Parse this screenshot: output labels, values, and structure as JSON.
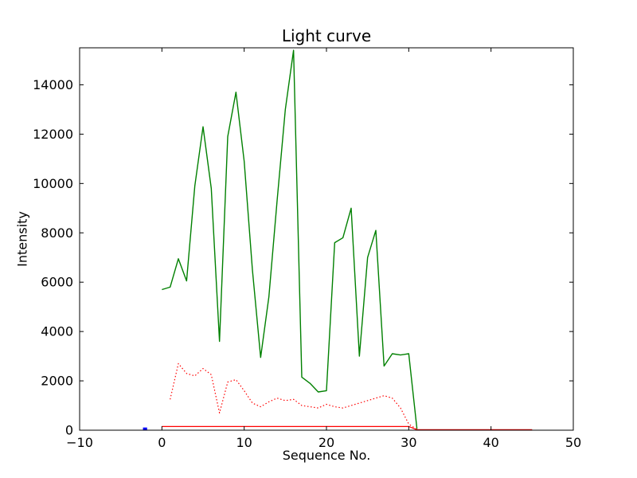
{
  "chart_data": {
    "type": "line",
    "title": "Light curve",
    "xlabel": "Sequence No.",
    "ylabel": "Intensity",
    "xlim": [
      -10,
      50
    ],
    "ylim": [
      0,
      15500
    ],
    "grid": false,
    "legend_position": "none",
    "frame_color": "#000000",
    "background_color": "#ffffff",
    "xticks": [
      {
        "value": -10,
        "label": "−10"
      },
      {
        "value": 0,
        "label": "0"
      },
      {
        "value": 10,
        "label": "10"
      },
      {
        "value": 20,
        "label": "20"
      },
      {
        "value": 30,
        "label": "30"
      },
      {
        "value": 40,
        "label": "40"
      },
      {
        "value": 50,
        "label": "50"
      }
    ],
    "yticks": [
      {
        "value": 0,
        "label": "0"
      },
      {
        "value": 2000,
        "label": "2000"
      },
      {
        "value": 4000,
        "label": "4000"
      },
      {
        "value": 6000,
        "label": "6000"
      },
      {
        "value": 8000,
        "label": "8000"
      },
      {
        "value": 10000,
        "label": "10000"
      },
      {
        "value": 12000,
        "label": "12000"
      },
      {
        "value": 14000,
        "label": "14000"
      }
    ],
    "series": [
      {
        "name": "green-solid",
        "color": "#008000",
        "style": "solid",
        "width": 1.4,
        "x": [
          0,
          1,
          2,
          3,
          4,
          5,
          6,
          7,
          8,
          9,
          10,
          11,
          12,
          13,
          14,
          15,
          16,
          17,
          18,
          19,
          20,
          21,
          22,
          23,
          24,
          25,
          26,
          27,
          28,
          29,
          30,
          31
        ],
        "values": [
          5700,
          5800,
          6950,
          6050,
          9900,
          12300,
          9800,
          3600,
          11900,
          13700,
          10900,
          6500,
          2950,
          5400,
          9300,
          13000,
          15400,
          2150,
          1900,
          1550,
          1600,
          7600,
          7800,
          9000,
          3000,
          7000,
          8100,
          2600,
          3100,
          3050,
          3100,
          50
        ]
      },
      {
        "name": "red-dotted",
        "color": "#ff0000",
        "style": "dotted",
        "width": 1.2,
        "x": [
          1,
          2,
          3,
          4,
          5,
          6,
          7,
          8,
          9,
          10,
          11,
          12,
          13,
          14,
          15,
          16,
          17,
          18,
          19,
          20,
          21,
          22,
          23,
          24,
          25,
          26,
          27,
          28,
          29,
          30,
          31
        ],
        "values": [
          1250,
          2700,
          2300,
          2200,
          2500,
          2250,
          700,
          1950,
          2050,
          1600,
          1100,
          950,
          1150,
          1300,
          1200,
          1250,
          1000,
          950,
          900,
          1050,
          950,
          900,
          1000,
          1100,
          1200,
          1300,
          1400,
          1300,
          900,
          250,
          30
        ]
      },
      {
        "name": "red-solid",
        "color": "#ff0000",
        "style": "solid",
        "width": 1.2,
        "x": [
          0,
          5,
          10,
          15,
          20,
          25,
          30,
          31,
          35,
          40,
          45
        ],
        "values": [
          150,
          150,
          150,
          150,
          150,
          150,
          150,
          20,
          20,
          20,
          20
        ]
      },
      {
        "name": "blue-marker",
        "color": "#0000ff",
        "style": "solid",
        "width": 3,
        "x": [
          -2.3,
          -1.8
        ],
        "values": [
          60,
          60
        ]
      }
    ]
  }
}
